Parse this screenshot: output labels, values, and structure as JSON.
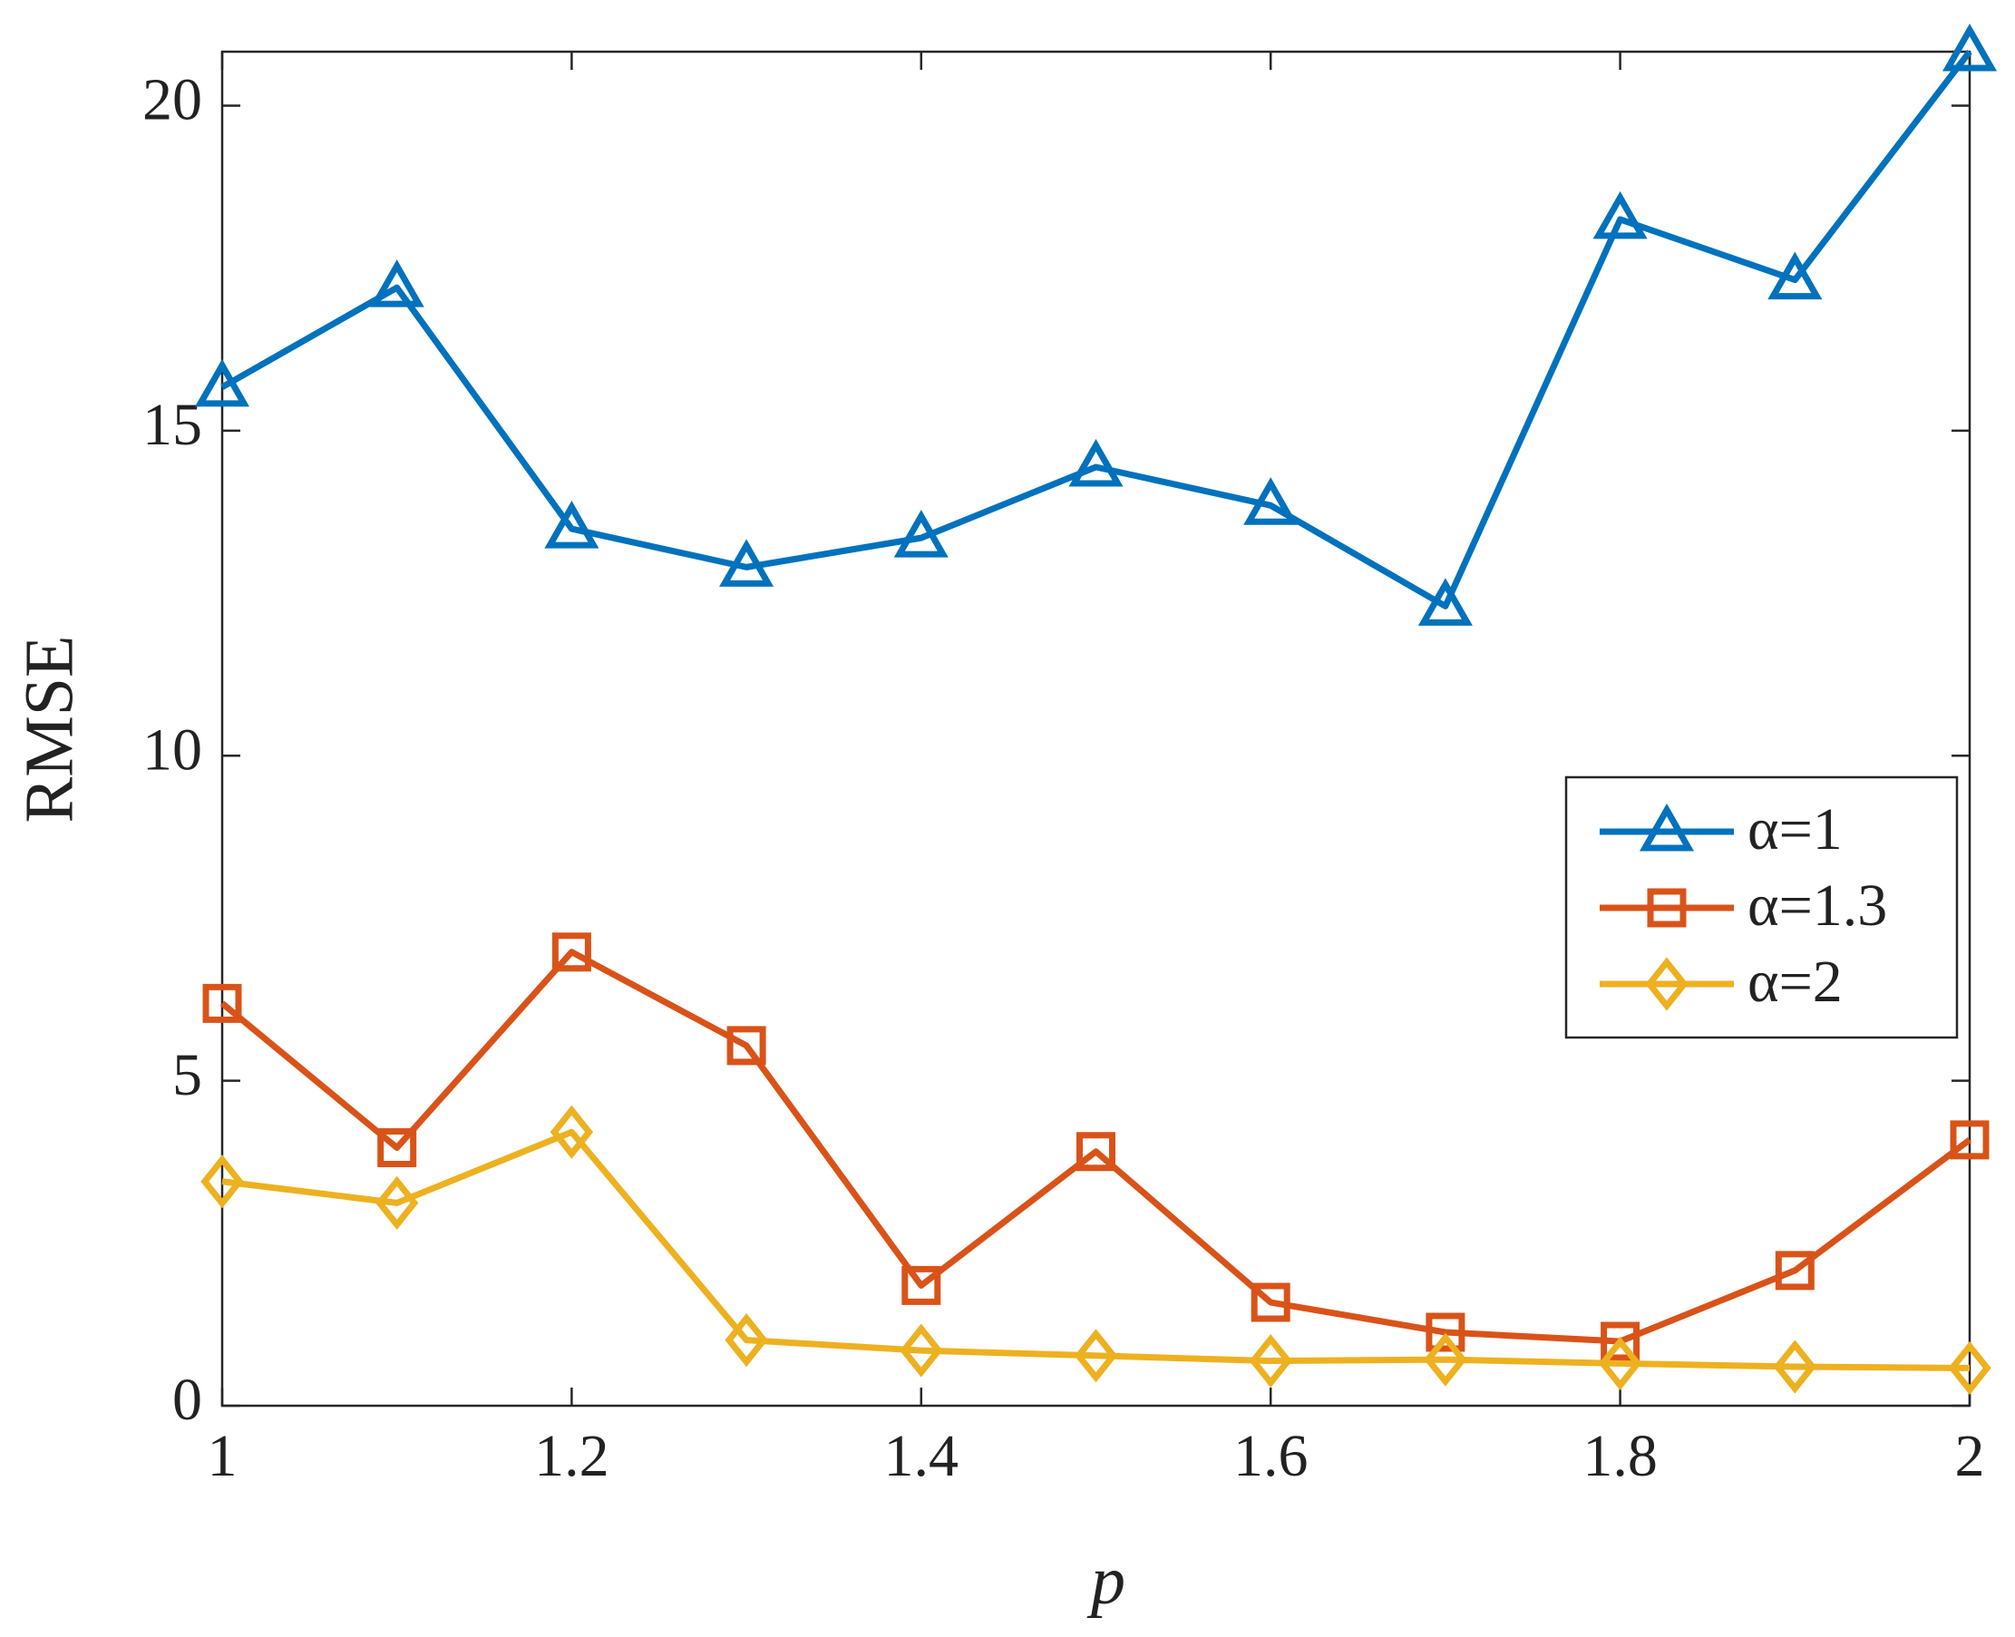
{
  "chart_data": {
    "type": "line",
    "x_label": "p",
    "y_label": "RMSE",
    "x": [
      1,
      1.1,
      1.2,
      1.3,
      1.4,
      1.5,
      1.6,
      1.7,
      1.8,
      1.9,
      2
    ],
    "series": [
      {
        "name": "α=1",
        "color": "#0072bd",
        "marker": "triangle",
        "values": [
          15.67,
          17.2,
          13.49,
          12.9,
          13.35,
          14.44,
          13.85,
          12.3,
          18.25,
          17.32,
          20.83
        ]
      },
      {
        "name": "α=1.3",
        "color": "#d95319",
        "marker": "square",
        "values": [
          6.19,
          3.97,
          6.98,
          5.54,
          1.85,
          3.91,
          1.59,
          1.13,
          0.99,
          2.08,
          4.09
        ]
      },
      {
        "name": "α=2",
        "color": "#edb120",
        "marker": "diamond",
        "values": [
          3.45,
          3.12,
          4.21,
          1.01,
          0.85,
          0.77,
          0.69,
          0.71,
          0.65,
          0.6,
          0.58
        ]
      }
    ],
    "xlim": [
      1,
      2
    ],
    "xticks": [
      1,
      1.2,
      1.4,
      1.6,
      1.8,
      2
    ],
    "ylim": [
      0,
      20.83
    ],
    "yticks": [
      0,
      5,
      10,
      15,
      20
    ],
    "legend": "east"
  }
}
